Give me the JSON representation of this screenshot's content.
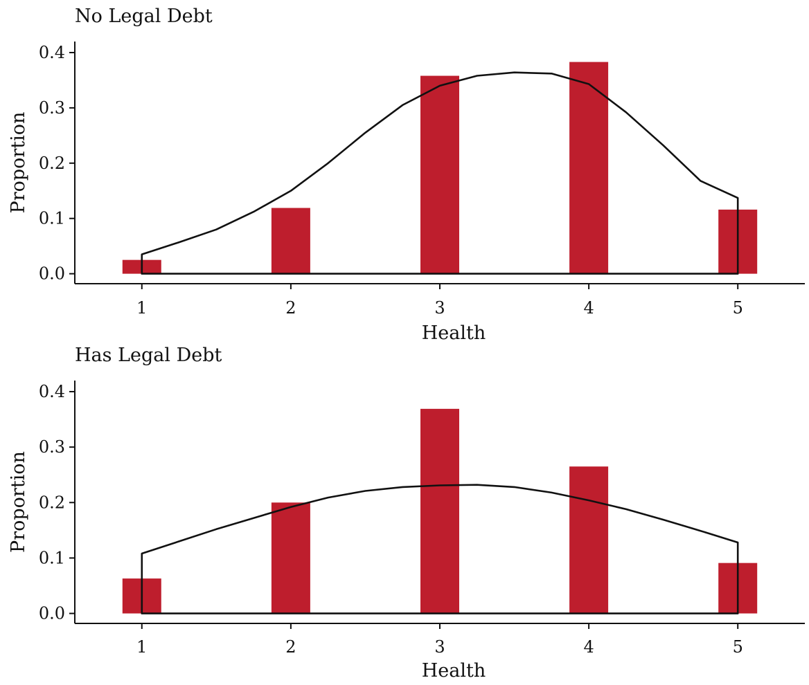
{
  "chart_data": [
    {
      "type": "bar",
      "title": "No Legal Debt",
      "xlabel": "Health",
      "ylabel": "Proportion",
      "categories": [
        1,
        2,
        3,
        4,
        5
      ],
      "x_tick_labels": [
        "1",
        "2",
        "3",
        "4",
        "5"
      ],
      "values": [
        0.025,
        0.119,
        0.358,
        0.383,
        0.116
      ],
      "y_ticks": [
        0.0,
        0.1,
        0.2,
        0.3,
        0.4
      ],
      "y_tick_labels": [
        "0.0",
        "0.1",
        "0.2",
        "0.3",
        "0.4"
      ],
      "xlim": [
        0.55,
        5.45
      ],
      "ylim": [
        -0.018,
        0.42
      ],
      "bar_color": "#be1e2d",
      "line_color": "#111111",
      "density_curve": {
        "x": [
          1.0,
          1.25,
          1.5,
          1.75,
          2.0,
          2.25,
          2.5,
          2.75,
          3.0,
          3.25,
          3.5,
          3.75,
          4.0,
          4.25,
          4.5,
          4.75,
          5.0
        ],
        "y": [
          0.035,
          0.057,
          0.08,
          0.112,
          0.15,
          0.2,
          0.255,
          0.305,
          0.34,
          0.358,
          0.364,
          0.362,
          0.343,
          0.292,
          0.232,
          0.168,
          0.137
        ]
      },
      "grid": false,
      "legend": "none"
    },
    {
      "type": "bar",
      "title": "Has Legal Debt",
      "xlabel": "Health",
      "ylabel": "Proportion",
      "categories": [
        1,
        2,
        3,
        4,
        5
      ],
      "x_tick_labels": [
        "1",
        "2",
        "3",
        "4",
        "5"
      ],
      "values": [
        0.063,
        0.2,
        0.369,
        0.265,
        0.091
      ],
      "y_ticks": [
        0.0,
        0.1,
        0.2,
        0.3,
        0.4
      ],
      "y_tick_labels": [
        "0.0",
        "0.1",
        "0.2",
        "0.3",
        "0.4"
      ],
      "xlim": [
        0.55,
        5.45
      ],
      "ylim": [
        -0.018,
        0.42
      ],
      "bar_color": "#be1e2d",
      "line_color": "#111111",
      "density_curve": {
        "x": [
          1.0,
          1.25,
          1.5,
          1.75,
          2.0,
          2.25,
          2.5,
          2.75,
          3.0,
          3.25,
          3.5,
          3.75,
          4.0,
          4.25,
          4.5,
          4.75,
          5.0
        ],
        "y": [
          0.108,
          0.13,
          0.152,
          0.172,
          0.192,
          0.209,
          0.221,
          0.228,
          0.231,
          0.232,
          0.228,
          0.218,
          0.204,
          0.188,
          0.169,
          0.149,
          0.128
        ]
      },
      "grid": false,
      "legend": "none"
    }
  ]
}
